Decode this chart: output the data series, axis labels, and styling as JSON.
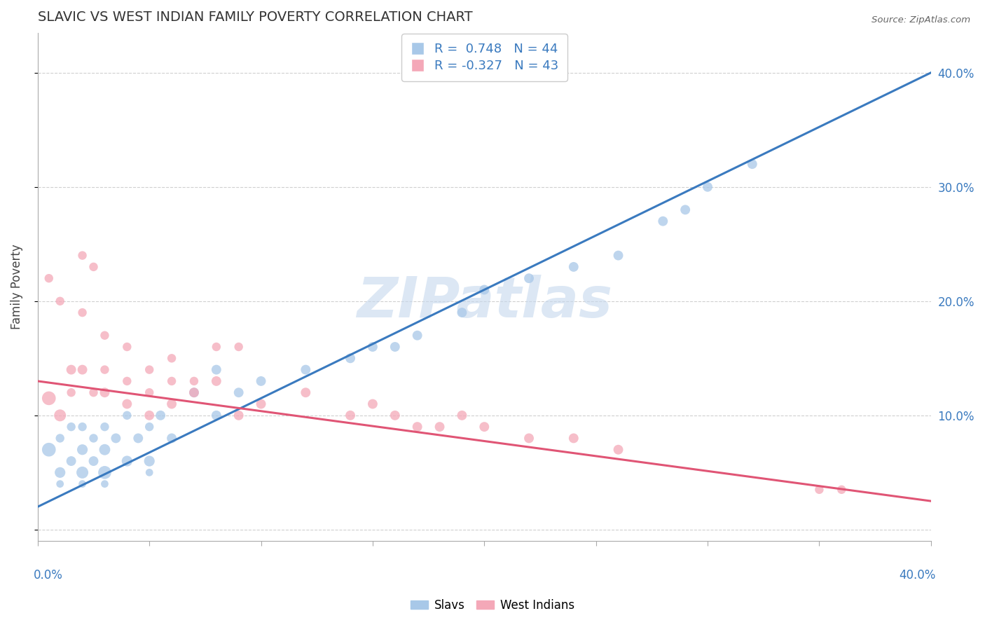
{
  "title": "SLAVIC VS WEST INDIAN FAMILY POVERTY CORRELATION CHART",
  "source": "Source: ZipAtlas.com",
  "ylabel": "Family Poverty",
  "xlim": [
    0.0,
    0.4
  ],
  "ylim": [
    -0.01,
    0.435
  ],
  "slavs_color": "#a8c8e8",
  "west_indians_color": "#f4a8b8",
  "slavs_line_color": "#3a7abf",
  "west_indians_line_color": "#e05575",
  "slavs_R": 0.748,
  "slavs_N": 44,
  "west_indians_R": -0.327,
  "west_indians_N": 43,
  "watermark": "ZIPatlas",
  "watermark_color": "#c5d8ed",
  "grid_color": "#d0d0d0",
  "grid_linestyle": "--",
  "slavs_line_x0": 0.0,
  "slavs_line_y0": 0.02,
  "slavs_line_x1": 0.4,
  "slavs_line_y1": 0.4,
  "wi_line_x0": 0.0,
  "wi_line_y0": 0.13,
  "wi_line_x1": 0.4,
  "wi_line_y1": 0.025,
  "slavs_x": [
    0.005,
    0.01,
    0.01,
    0.015,
    0.015,
    0.02,
    0.02,
    0.02,
    0.025,
    0.025,
    0.03,
    0.03,
    0.03,
    0.035,
    0.04,
    0.04,
    0.045,
    0.05,
    0.05,
    0.055,
    0.06,
    0.07,
    0.08,
    0.08,
    0.09,
    0.1,
    0.12,
    0.14,
    0.15,
    0.16,
    0.17,
    0.19,
    0.2,
    0.22,
    0.24,
    0.26,
    0.28,
    0.29,
    0.3,
    0.32,
    0.01,
    0.02,
    0.03,
    0.05
  ],
  "slavs_y": [
    0.07,
    0.05,
    0.08,
    0.06,
    0.09,
    0.05,
    0.07,
    0.09,
    0.06,
    0.08,
    0.05,
    0.07,
    0.09,
    0.08,
    0.06,
    0.1,
    0.08,
    0.06,
    0.09,
    0.1,
    0.08,
    0.12,
    0.1,
    0.14,
    0.12,
    0.13,
    0.14,
    0.15,
    0.16,
    0.16,
    0.17,
    0.19,
    0.21,
    0.22,
    0.23,
    0.24,
    0.27,
    0.28,
    0.3,
    0.32,
    0.04,
    0.04,
    0.04,
    0.05
  ],
  "slavs_sizes": [
    200,
    120,
    80,
    100,
    80,
    150,
    120,
    80,
    100,
    80,
    180,
    130,
    80,
    100,
    120,
    80,
    100,
    120,
    80,
    100,
    100,
    100,
    100,
    100,
    100,
    100,
    100,
    100,
    100,
    100,
    100,
    100,
    100,
    100,
    100,
    100,
    100,
    100,
    100,
    100,
    60,
    60,
    60,
    60
  ],
  "west_indians_x": [
    0.005,
    0.01,
    0.015,
    0.015,
    0.02,
    0.025,
    0.03,
    0.03,
    0.04,
    0.04,
    0.05,
    0.05,
    0.06,
    0.06,
    0.07,
    0.08,
    0.09,
    0.1,
    0.12,
    0.14,
    0.15,
    0.16,
    0.17,
    0.18,
    0.19,
    0.2,
    0.22,
    0.24,
    0.26,
    0.35,
    0.36,
    0.005,
    0.01,
    0.02,
    0.03,
    0.04,
    0.05,
    0.06,
    0.07,
    0.02,
    0.025,
    0.08,
    0.09
  ],
  "west_indians_y": [
    0.115,
    0.1,
    0.14,
    0.12,
    0.14,
    0.12,
    0.12,
    0.14,
    0.11,
    0.13,
    0.1,
    0.12,
    0.11,
    0.13,
    0.12,
    0.13,
    0.1,
    0.11,
    0.12,
    0.1,
    0.11,
    0.1,
    0.09,
    0.09,
    0.1,
    0.09,
    0.08,
    0.08,
    0.07,
    0.035,
    0.035,
    0.22,
    0.2,
    0.19,
    0.17,
    0.16,
    0.14,
    0.15,
    0.13,
    0.24,
    0.23,
    0.16,
    0.16
  ],
  "west_indians_sizes": [
    200,
    150,
    100,
    80,
    100,
    80,
    100,
    80,
    100,
    80,
    100,
    80,
    100,
    80,
    100,
    100,
    100,
    100,
    100,
    100,
    100,
    100,
    100,
    100,
    100,
    100,
    100,
    100,
    100,
    80,
    80,
    80,
    80,
    80,
    80,
    80,
    80,
    80,
    80,
    80,
    80,
    80,
    80
  ]
}
